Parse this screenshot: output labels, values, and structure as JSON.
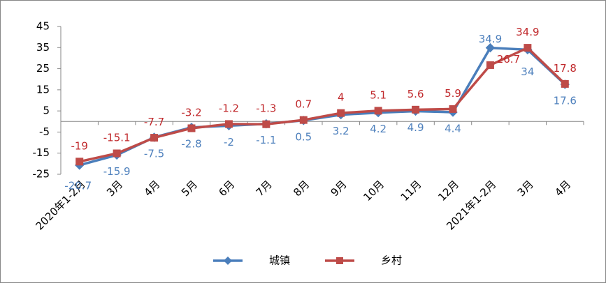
{
  "chart_data": {
    "type": "line",
    "categories": [
      "2020年1-2月",
      "3月",
      "4月",
      "5月",
      "6月",
      "7月",
      "8月",
      "9月",
      "10月",
      "11月",
      "12月",
      "2021年1-2月",
      "3月",
      "4月"
    ],
    "series": [
      {
        "name": "城镇",
        "color": "#4a7ebb",
        "label_color": "#4f81bd",
        "marker": "diamond",
        "values": [
          -20.7,
          -15.9,
          -7.5,
          -2.8,
          -2,
          -1.1,
          0.5,
          3.2,
          4.2,
          4.9,
          4.4,
          34.9,
          34,
          17.6
        ]
      },
      {
        "name": "乡村",
        "color": "#be4b48",
        "label_color": "#c0282b",
        "marker": "square",
        "values": [
          -19,
          -15.1,
          -7.7,
          -3.2,
          -1.2,
          -1.3,
          0.7,
          4,
          5.1,
          5.6,
          5.9,
          26.7,
          34.9,
          17.8
        ]
      }
    ],
    "ylim": [
      -25,
      45
    ],
    "yticks": [
      -25,
      -15,
      -5,
      5,
      15,
      25,
      35,
      45
    ],
    "grid": false,
    "legend": "bottom"
  }
}
